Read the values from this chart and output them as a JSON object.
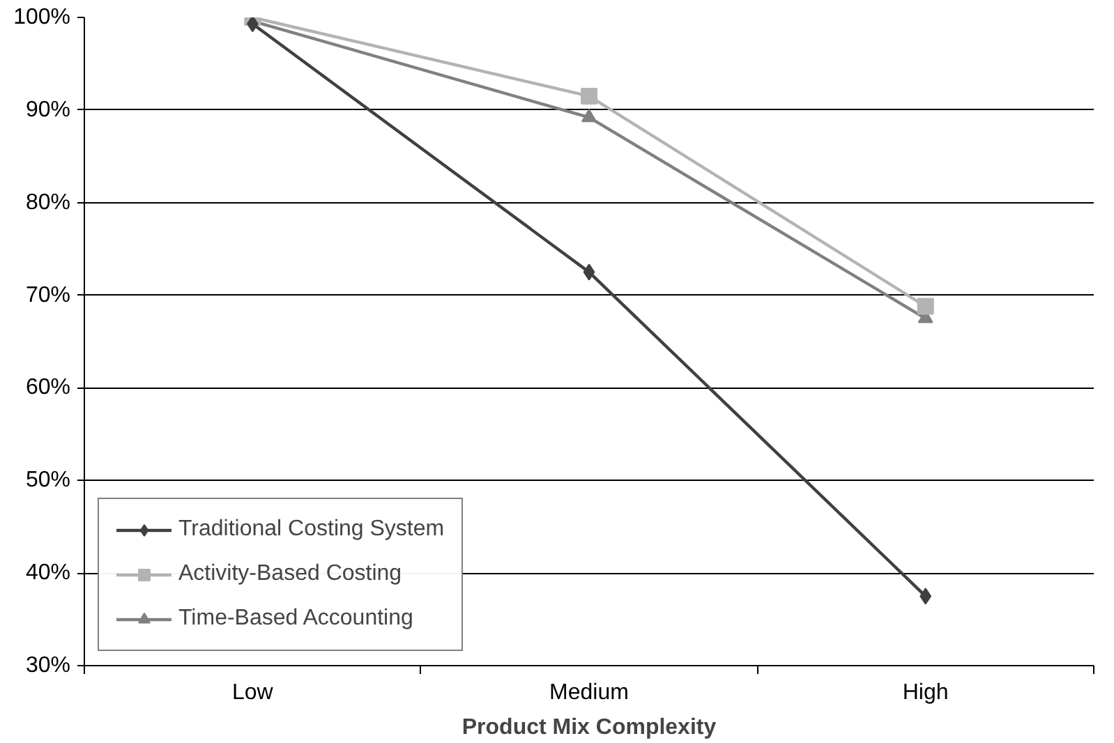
{
  "chart_data": {
    "type": "line",
    "xlabel": "Product Mix Complexity",
    "categories": [
      "Low",
      "Medium",
      "High"
    ],
    "series": [
      {
        "name": "Traditional Costing System",
        "color": "#404040",
        "marker": "diamond",
        "values": [
          99.3,
          72.5,
          37.5
        ]
      },
      {
        "name": "Activity-Based Costing",
        "color": "#b3b3b3",
        "marker": "square",
        "values": [
          100,
          91.5,
          68.8
        ]
      },
      {
        "name": "Time-Based Accounting",
        "color": "#808080",
        "marker": "triangle",
        "values": [
          99.6,
          89.2,
          67.5
        ]
      }
    ],
    "ylim": [
      30,
      100
    ],
    "yticks": [
      {
        "value": 30,
        "label": "30%"
      },
      {
        "value": 40,
        "label": "40%"
      },
      {
        "value": 50,
        "label": "50%"
      },
      {
        "value": 60,
        "label": "60%"
      },
      {
        "value": 70,
        "label": "70%"
      },
      {
        "value": 80,
        "label": "80%"
      },
      {
        "value": 90,
        "label": "90%"
      },
      {
        "value": 100,
        "label": "100%"
      }
    ],
    "grid": "y",
    "legend": "bottom left",
    "line_style": "solid"
  }
}
